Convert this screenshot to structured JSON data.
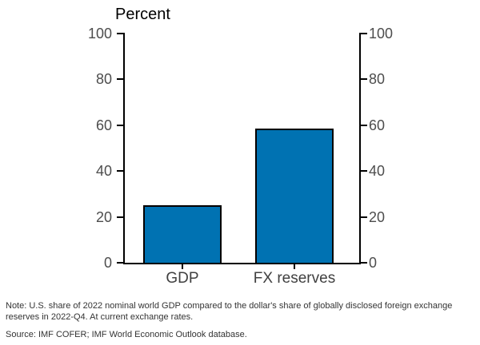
{
  "chart_data": {
    "type": "bar",
    "title": "Percent",
    "categories": [
      "GDP",
      "FX reserves"
    ],
    "values": [
      25,
      58.5
    ],
    "xlabel": "",
    "ylabel": "Percent",
    "ylim": [
      0,
      100
    ],
    "yticks": [
      0,
      20,
      40,
      60,
      80,
      100
    ],
    "dual_y_axis": true,
    "grid": false,
    "legend": "none",
    "bar_color": "#0072b2",
    "bar_edge_color": "#000000",
    "bar_centers_pct": [
      24.5,
      72.5
    ],
    "bar_width_pct": 33.5
  },
  "footnote": {
    "note": "Note: U.S. share of 2022 nominal world GDP compared to the dollar's share of globally disclosed foreign exchange reserves in 2022-Q4. At current exchange rates.",
    "source": "Source: IMF COFER; IMF World Economic Outlook database."
  },
  "colors": {
    "axis": "#000000",
    "tick_label": "#4d4d4d",
    "category_label": "#404040",
    "title_text": "#000000",
    "note_text": "#333333"
  }
}
